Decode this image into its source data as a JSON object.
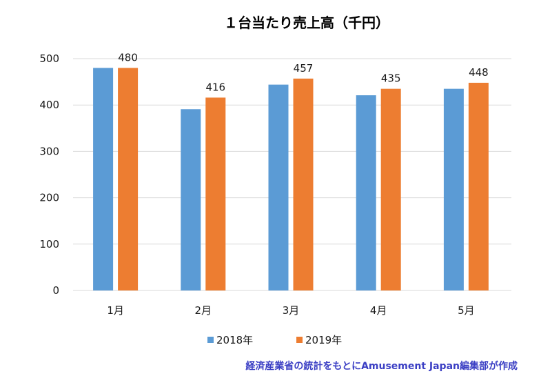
{
  "chart_data": {
    "type": "bar",
    "title": "１台当たり売上高（千円）",
    "categories": [
      "1月",
      "2月",
      "3月",
      "4月",
      "5月"
    ],
    "series": [
      {
        "name": "2018年",
        "color": "#5b9bd5",
        "values": [
          480,
          391,
          444,
          421,
          435
        ],
        "data_labels": false
      },
      {
        "name": "2019年",
        "color": "#ed7d31",
        "values": [
          480,
          416,
          457,
          435,
          448
        ],
        "data_labels": true
      }
    ],
    "yticks": [
      0,
      100,
      200,
      300,
      400,
      500
    ],
    "ylim": [
      0,
      500
    ],
    "xlabel": "",
    "ylabel": "",
    "grid": true,
    "legend_position": "bottom"
  },
  "source_note": "経済産業省の統計をもとにAmusement Japan編集部が作成"
}
